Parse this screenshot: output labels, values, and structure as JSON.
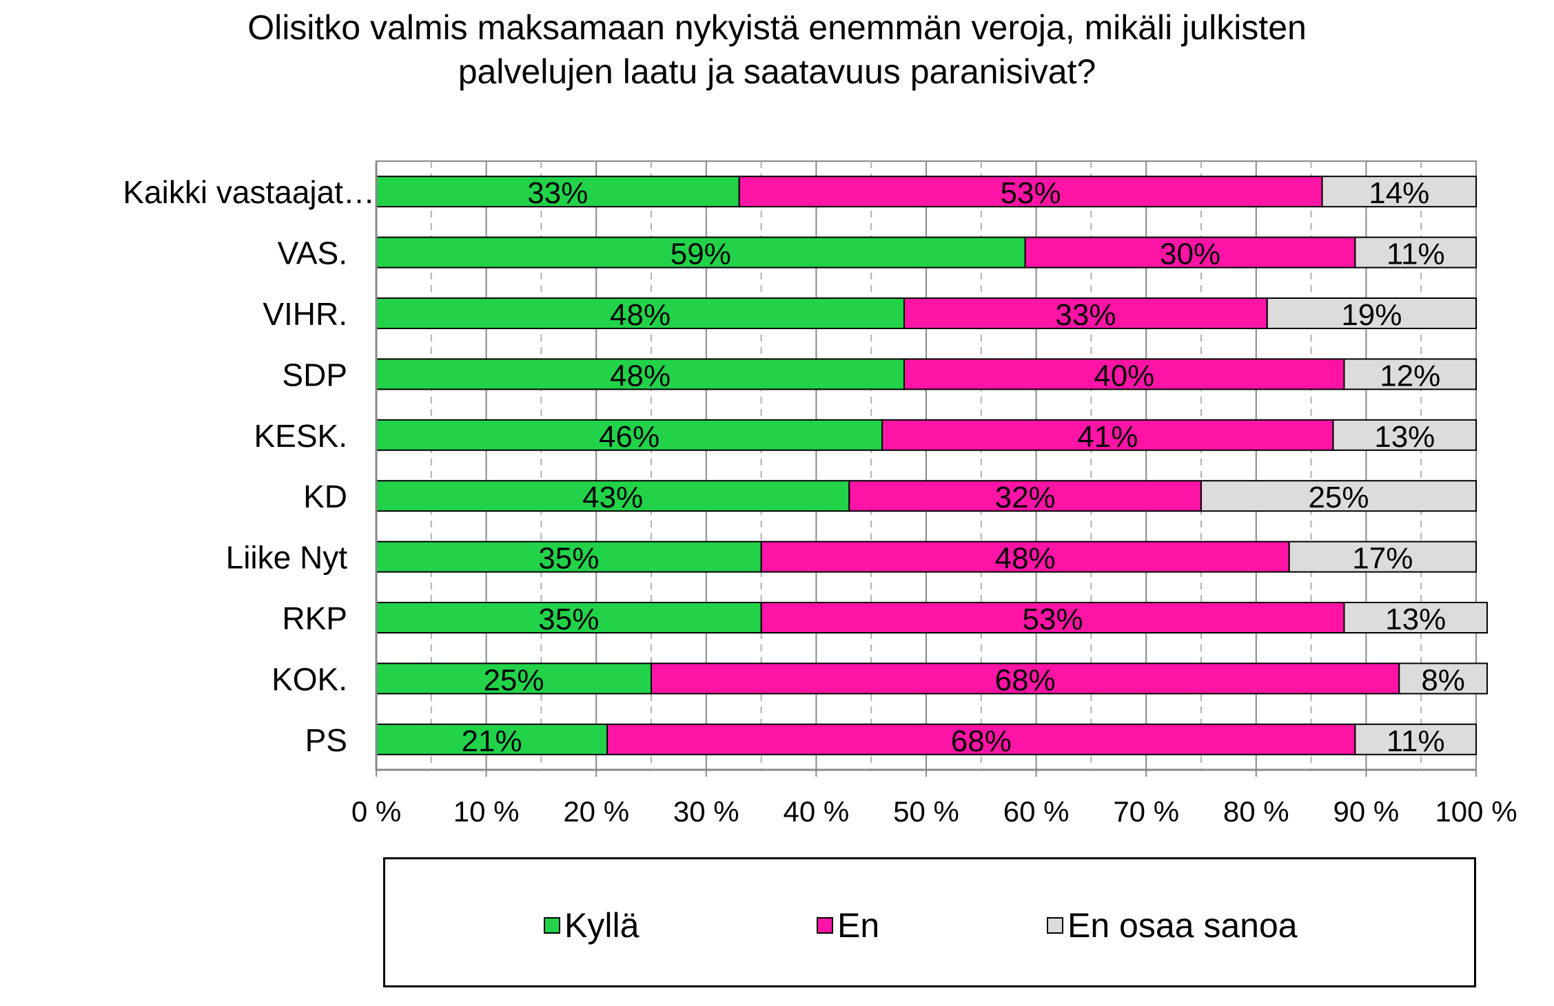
{
  "title_lines": [
    "Olisitko valmis maksamaan nykyistä enemmän veroja, mikäli julkisten",
    "palvelujen laatu ja saatavuus paranisivat?"
  ],
  "colors": {
    "Kyllä": "#22d34a",
    "En": "#ff14a6",
    "En osaa sanoa": "#dcdcdc"
  },
  "legend": [
    {
      "label": "Kyllä",
      "color": "#22d34a"
    },
    {
      "label": "En",
      "color": "#ff14a6"
    },
    {
      "label": "En osaa sanoa",
      "color": "#dcdcdc"
    }
  ],
  "chart_data": {
    "type": "bar",
    "orientation": "horizontal",
    "stacked": "percent",
    "title": "Olisitko valmis maksamaan nykyistä enemmän veroja, mikäli julkisten palvelujen laatu ja saatavuus paranisivat?",
    "categories": [
      "Kaikki vastaajat…",
      "VAS.",
      "VIHR.",
      "SDP",
      "KESK.",
      "KD",
      "Liike Nyt",
      "RKP",
      "KOK.",
      "PS"
    ],
    "series": [
      {
        "name": "Kyllä",
        "values": [
          33,
          59,
          48,
          48,
          46,
          43,
          35,
          35,
          25,
          21
        ],
        "labels": [
          "33%",
          "59%",
          "48%",
          "48%",
          "46%",
          "43%",
          "35%",
          "35%",
          "25%",
          "21%"
        ]
      },
      {
        "name": "En",
        "values": [
          53,
          30,
          33,
          40,
          41,
          32,
          48,
          53,
          68,
          68
        ],
        "labels": [
          "53%",
          "30%",
          "33%",
          "40%",
          "41%",
          "32%",
          "48%",
          "53%",
          "68%",
          "68%"
        ]
      },
      {
        "name": "En osaa sanoa",
        "values": [
          14,
          11,
          19,
          12,
          13,
          25,
          17,
          13,
          8,
          11
        ],
        "labels": [
          "14%",
          "11%",
          "19%",
          "12%",
          "13%",
          "25%",
          "17%",
          "13%",
          "8%",
          "11%"
        ]
      }
    ],
    "x_ticks": [
      "0 %",
      "10 %",
      "20 %",
      "30 %",
      "40 %",
      "50 %",
      "60 %",
      "70 %",
      "80 %",
      "90 %",
      "100 %"
    ],
    "xlim": [
      0,
      100
    ],
    "grid": "vertical major solid, minor dashed",
    "legend_position": "bottom"
  }
}
